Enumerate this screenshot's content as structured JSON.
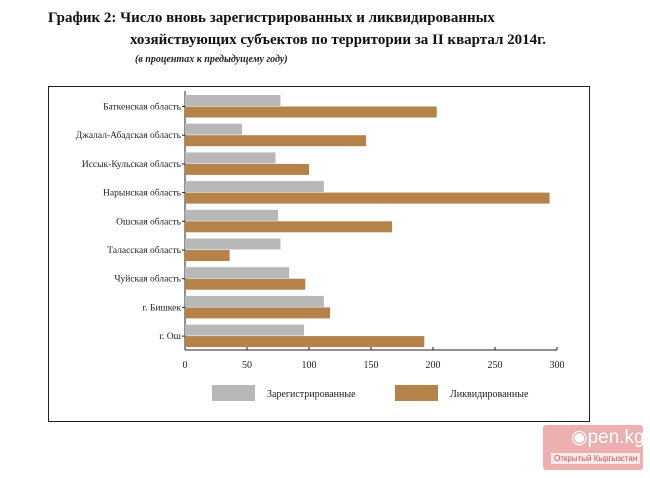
{
  "chart_data": {
    "type": "bar",
    "orientation": "horizontal",
    "title_line1": "График 2: Число вновь зарегистрированных и ликвидированных",
    "title_line2": "хозяйствующих субъектов по территории за II квартал 2014г.",
    "subtitle": "(в процентах к предыдущему году)",
    "categories": [
      "Баткенская область",
      "Джалал-Абадская область",
      "Иссык-Кульская область",
      "Нарынская область",
      "Ошская область",
      "Таласская область",
      "Чуйская область",
      "г.  Бишкек",
      "г.  Ош"
    ],
    "series": [
      {
        "name": "Зарегистрированные",
        "color": "#b8b8b8",
        "values": [
          77,
          46,
          73,
          112,
          75,
          77,
          84,
          112,
          96
        ]
      },
      {
        "name": "Ликвидированные",
        "color": "#b5834a",
        "values": [
          203,
          146,
          100,
          294,
          167,
          36,
          97,
          117,
          193
        ]
      }
    ],
    "xlim": [
      0,
      300
    ],
    "xticks": [
      "0",
      "50",
      "100",
      "150",
      "200",
      "250",
      "300"
    ],
    "grid": false,
    "legend": "bottom"
  },
  "watermark": {
    "logo": "open.kg",
    "tagline": "Открытый Кыргызстан"
  }
}
